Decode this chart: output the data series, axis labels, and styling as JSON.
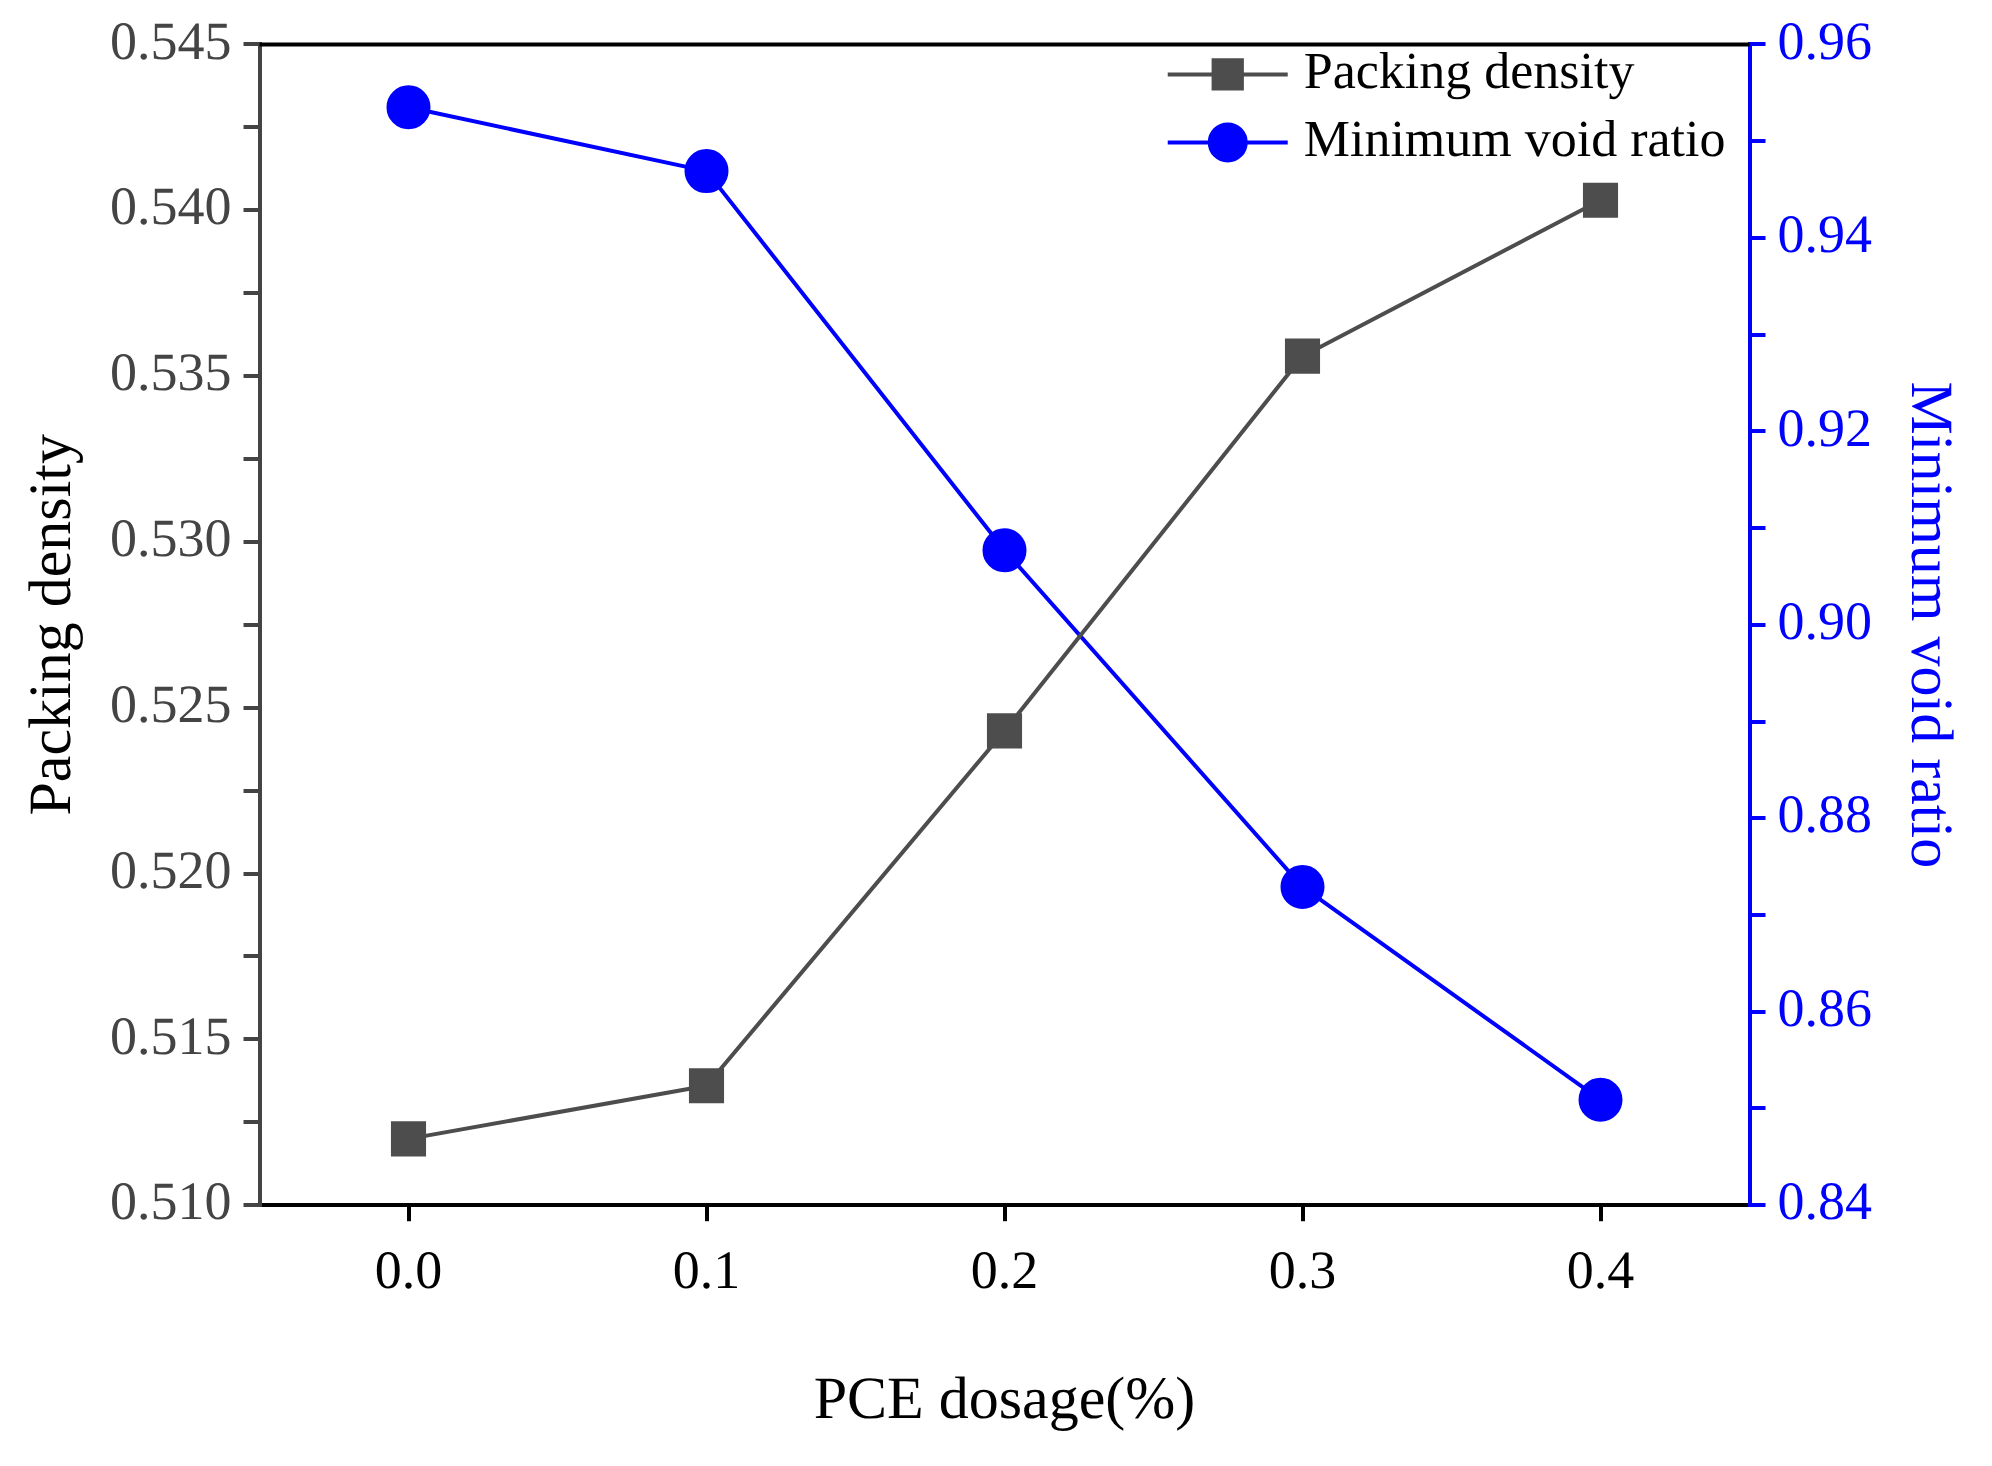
{
  "chart_data": {
    "type": "line",
    "xlabel": "PCE dosage(%)",
    "ylabel": "Packing density",
    "y2label": "Minimum void ratio",
    "x": [
      0,
      0.1,
      0.2,
      0.3,
      0.4
    ],
    "series": [
      {
        "name": "Packing density",
        "color": "#4d4d4d",
        "marker": "square",
        "values": [
          0.512,
          0.5136,
          0.5243,
          0.5356,
          0.5403
        ]
      },
      {
        "name": "Minimum void ratio",
        "color": "#0000ff",
        "marker": "circle",
        "axis": "y2",
        "values": [
          0.9535,
          0.9469,
          0.9077,
          0.8729,
          0.8509
        ]
      }
    ],
    "xlim": [
      -0.05,
      0.45
    ],
    "xticks": [
      {
        "value": 0,
        "label": "0.0"
      },
      {
        "value": 0.1,
        "label": "0.1"
      },
      {
        "value": 0.2,
        "label": "0.2"
      },
      {
        "value": 0.3,
        "label": "0.3"
      },
      {
        "value": 0.4,
        "label": "0.4"
      }
    ],
    "ylim": [
      0.51,
      0.545
    ],
    "yticks": [
      {
        "value": 0.51,
        "label": "0.510"
      },
      {
        "value": 0.5125,
        "label": null
      },
      {
        "value": 0.515,
        "label": "0.515"
      },
      {
        "value": 0.5175,
        "label": null
      },
      {
        "value": 0.52,
        "label": "0.520"
      },
      {
        "value": 0.5225,
        "label": null
      },
      {
        "value": 0.525,
        "label": "0.525"
      },
      {
        "value": 0.5275,
        "label": null
      },
      {
        "value": 0.53,
        "label": "0.530"
      },
      {
        "value": 0.5325,
        "label": null
      },
      {
        "value": 0.535,
        "label": "0.535"
      },
      {
        "value": 0.5375,
        "label": null
      },
      {
        "value": 0.54,
        "label": "0.540"
      },
      {
        "value": 0.5425,
        "label": null
      },
      {
        "value": 0.545,
        "label": "0.545"
      }
    ],
    "y2lim": [
      0.84,
      0.96
    ],
    "y2ticks": [
      {
        "value": 0.84,
        "label": "0.84"
      },
      {
        "value": 0.85,
        "label": null
      },
      {
        "value": 0.86,
        "label": "0.86"
      },
      {
        "value": 0.87,
        "label": null
      },
      {
        "value": 0.88,
        "label": "0.88"
      },
      {
        "value": 0.89,
        "label": null
      },
      {
        "value": 0.9,
        "label": "0.90"
      },
      {
        "value": 0.91,
        "label": null
      },
      {
        "value": 0.92,
        "label": "0.92"
      },
      {
        "value": 0.93,
        "label": null
      },
      {
        "value": 0.94,
        "label": "0.94"
      },
      {
        "value": 0.95,
        "label": null
      },
      {
        "value": 0.96,
        "label": "0.96"
      }
    ],
    "grid": false,
    "legend": "top right",
    "line_style": "solid"
  }
}
